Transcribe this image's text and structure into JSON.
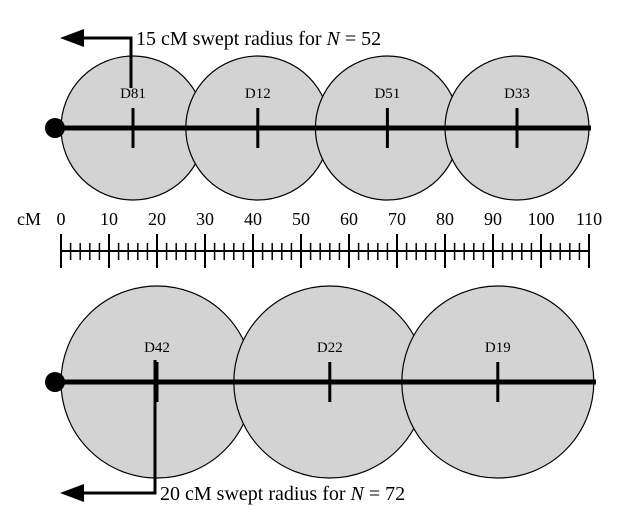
{
  "top_panel": {
    "caption_prefix": "15 cM swept radius for ",
    "caption_var": "N",
    "caption_suffix": " = 52",
    "markers": [
      {
        "label": "D81",
        "cM": 15
      },
      {
        "label": "D12",
        "cM": 41
      },
      {
        "label": "D51",
        "cM": 68
      },
      {
        "label": "D33",
        "cM": 95
      }
    ],
    "swept_radius_cM": 15
  },
  "scale": {
    "unit_label": "cM",
    "ticks": [
      "0",
      "10",
      "20",
      "30",
      "40",
      "50",
      "60",
      "70",
      "80",
      "90",
      "100",
      "110"
    ],
    "min_cM": 0,
    "max_cM": 110,
    "minor_step_cM": 2,
    "major_step_cM": 10
  },
  "bottom_panel": {
    "caption_prefix": "20 cM swept radius for ",
    "caption_var": "N",
    "caption_suffix": " = 72",
    "markers": [
      {
        "label": "D42",
        "cM": 20
      },
      {
        "label": "D22",
        "cM": 56
      },
      {
        "label": "D19",
        "cM": 91
      }
    ],
    "swept_radius_cM": 20
  },
  "colors": {
    "circle_fill": "#d3d3d3",
    "stroke": "#000000"
  }
}
